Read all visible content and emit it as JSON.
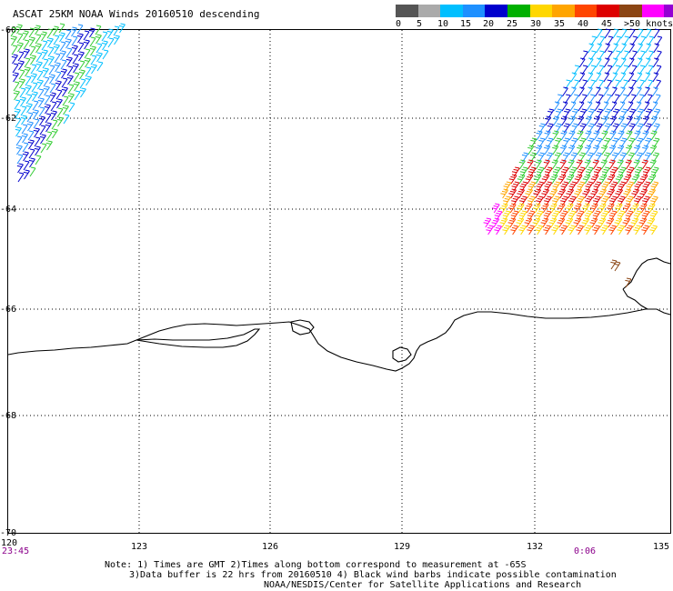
{
  "title": "ASCAT 25KM NOAA Winds 20160510 descending",
  "legend": {
    "colors": [
      "#555555",
      "#aaaaaa",
      "#00bfff",
      "#1e90ff",
      "#0000cd",
      "#00b000",
      "#ffd700",
      "#ffa500",
      "#ff4500",
      "#dd0000",
      "#8b4513",
      "#ff00ff",
      "#9400d3",
      "#4b0082"
    ],
    "labels": [
      "0",
      "5",
      "10",
      "15",
      "20",
      "25",
      "30",
      "35",
      "40",
      "45",
      ">50 knots"
    ]
  },
  "latitude_labels": [
    "-60",
    "-62",
    "-64",
    "-66",
    "-68",
    "-70"
  ],
  "longitude_labels": [
    "120",
    "123",
    "126",
    "129",
    "132",
    "135"
  ],
  "time_labels": [
    "23:45",
    "0:06"
  ],
  "notes": [
    "Note: 1) Times are GMT 2)Times along bottom correspond to measurement at -65S",
    "3)Data buffer is 22 hrs from 20160510 4) Black wind barbs indicate possible contamination",
    "NOAA/NESDIS/Center for Satellite Applications and Research"
  ]
}
